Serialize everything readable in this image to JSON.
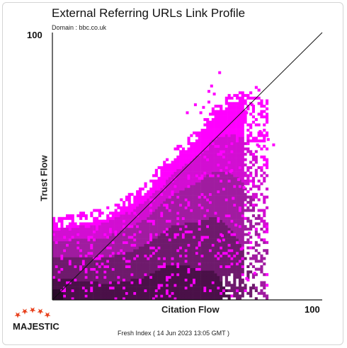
{
  "title": "External Referring URLs Link Profile",
  "subtitle": "Domain : bbc.co.uk",
  "footer": "Fresh Index ( 14 Jun 2023 13:05 GMT )",
  "logo": {
    "text": "MAJESTIC",
    "star_color": "#e8401c",
    "icon": "majestic-stars-logo"
  },
  "colors": {
    "dense": "#2a0a2a",
    "mid": "#8a1a8a",
    "sparse": "#ff00ff",
    "axis": "#111111"
  },
  "chart_data": {
    "type": "heatmap",
    "xlabel": "Citation Flow",
    "ylabel": "Trust Flow",
    "xlim": [
      0,
      100
    ],
    "ylim": [
      0,
      100
    ],
    "x_tick_labels": [
      "100"
    ],
    "y_tick_labels": [
      "100"
    ],
    "diagonal_line": {
      "from": [
        0,
        0
      ],
      "to": [
        100,
        100
      ]
    },
    "grid": false,
    "legend": "none",
    "density_envelope": {
      "description_units": "Trust Flow upper edge of point cloud at given Citation Flow",
      "cf": [
        0,
        5,
        10,
        15,
        20,
        25,
        30,
        35,
        40,
        45,
        50,
        55,
        60,
        65,
        70,
        75,
        80
      ],
      "tf_max": [
        30,
        31,
        32,
        33,
        34,
        37,
        40,
        44,
        50,
        56,
        60,
        65,
        72,
        76,
        78,
        80,
        75
      ]
    },
    "outliers": [
      [
        62,
        85
      ],
      [
        59,
        80
      ],
      [
        60,
        77
      ],
      [
        58,
        78
      ],
      [
        70,
        73
      ],
      [
        74,
        73
      ],
      [
        72,
        70
      ],
      [
        71,
        68
      ],
      [
        58,
        74
      ],
      [
        56,
        72
      ],
      [
        53,
        73
      ],
      [
        50,
        70
      ],
      [
        55,
        70
      ],
      [
        77,
        63
      ],
      [
        76,
        58
      ],
      [
        80,
        60
      ],
      [
        82,
        58
      ],
      [
        66,
        48
      ],
      [
        69,
        45
      ],
      [
        71,
        42
      ],
      [
        67,
        38
      ],
      [
        73,
        25
      ],
      [
        72,
        8
      ],
      [
        75,
        10
      ],
      [
        62,
        22
      ],
      [
        63,
        24
      ],
      [
        68,
        28
      ],
      [
        70,
        19
      ]
    ]
  }
}
